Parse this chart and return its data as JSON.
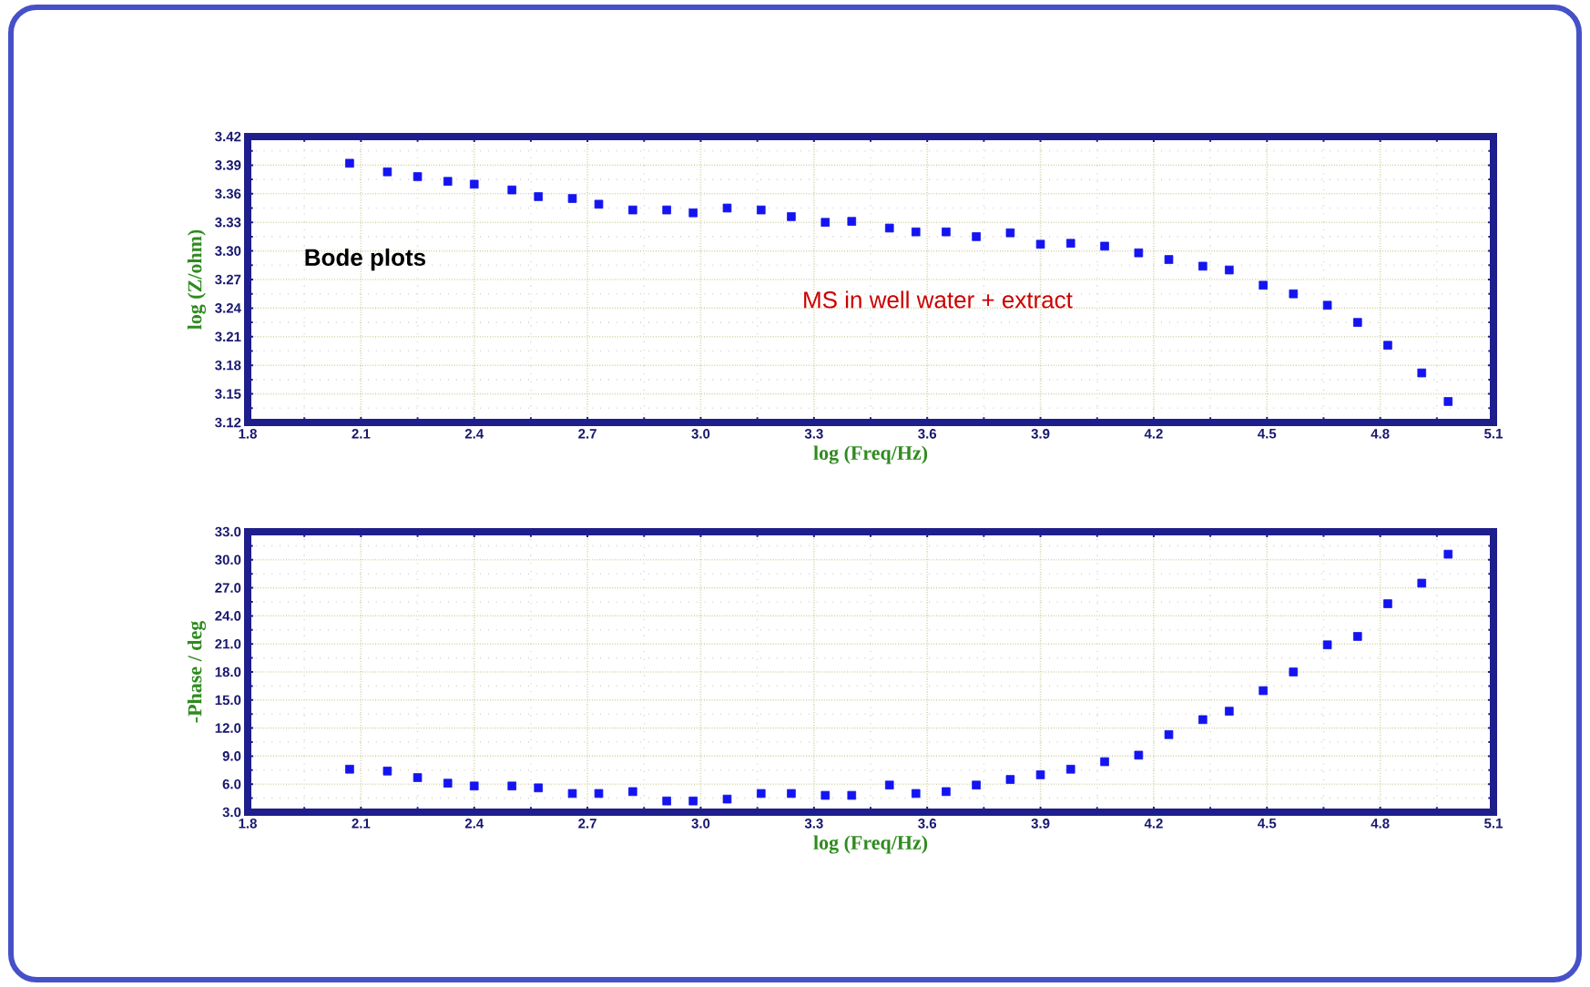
{
  "chart_data": [
    {
      "type": "scatter",
      "xlabel": "log (Freq/Hz)",
      "ylabel": "log (Z/ohm)",
      "annotations": [
        "Bode plots",
        "MS in well water + extract"
      ],
      "marker": "square",
      "grid": true,
      "xlim": [
        1.8,
        5.1
      ],
      "ylim": [
        3.12,
        3.42
      ],
      "xticks": [
        {
          "value": 1.8,
          "label": "1.8"
        },
        {
          "value": 2.1,
          "label": "2.1"
        },
        {
          "value": 2.4,
          "label": "2.4"
        },
        {
          "value": 2.7,
          "label": "2.7"
        },
        {
          "value": 3.0,
          "label": "3.0"
        },
        {
          "value": 3.3,
          "label": "3.3"
        },
        {
          "value": 3.6,
          "label": "3.6"
        },
        {
          "value": 3.9,
          "label": "3.9"
        },
        {
          "value": 4.2,
          "label": "4.2"
        },
        {
          "value": 4.5,
          "label": "4.5"
        },
        {
          "value": 4.8,
          "label": "4.8"
        },
        {
          "value": 5.1,
          "label": "5.1"
        }
      ],
      "yticks": [
        {
          "value": 3.12,
          "label": "3.12"
        },
        {
          "value": 3.15,
          "label": "3.15"
        },
        {
          "value": 3.18,
          "label": "3.18"
        },
        {
          "value": 3.21,
          "label": "3.21"
        },
        {
          "value": 3.24,
          "label": "3.24"
        },
        {
          "value": 3.27,
          "label": "3.27"
        },
        {
          "value": 3.3,
          "label": "3.30"
        },
        {
          "value": 3.33,
          "label": "3.33"
        },
        {
          "value": 3.36,
          "label": "3.36"
        },
        {
          "value": 3.39,
          "label": "3.39"
        },
        {
          "value": 3.42,
          "label": "3.42"
        }
      ],
      "x": [
        2.07,
        2.17,
        2.25,
        2.33,
        2.4,
        2.5,
        2.57,
        2.66,
        2.73,
        2.82,
        2.91,
        2.98,
        3.07,
        3.16,
        3.24,
        3.33,
        3.4,
        3.5,
        3.57,
        3.65,
        3.73,
        3.82,
        3.9,
        3.98,
        4.07,
        4.16,
        4.24,
        4.33,
        4.4,
        4.49,
        4.57,
        4.66,
        4.74,
        4.82,
        4.91,
        4.98
      ],
      "series": [
        {
          "color": "#1414f0",
          "values": [
            3.392,
            3.383,
            3.378,
            3.373,
            3.37,
            3.364,
            3.357,
            3.355,
            3.349,
            3.343,
            3.343,
            3.34,
            3.345,
            3.343,
            3.336,
            3.33,
            3.331,
            3.324,
            3.32,
            3.32,
            3.315,
            3.319,
            3.307,
            3.308,
            3.305,
            3.298,
            3.291,
            3.284,
            3.28,
            3.264,
            3.255,
            3.243,
            3.225,
            3.201,
            3.172,
            3.142
          ]
        }
      ]
    },
    {
      "type": "scatter",
      "xlabel": "log (Freq/Hz)",
      "ylabel": "-Phase / deg",
      "marker": "square",
      "grid": true,
      "xlim": [
        1.8,
        5.1
      ],
      "ylim": [
        3.0,
        33.0
      ],
      "xticks": [
        {
          "value": 1.8,
          "label": "1.8"
        },
        {
          "value": 2.1,
          "label": "2.1"
        },
        {
          "value": 2.4,
          "label": "2.4"
        },
        {
          "value": 2.7,
          "label": "2.7"
        },
        {
          "value": 3.0,
          "label": "3.0"
        },
        {
          "value": 3.3,
          "label": "3.3"
        },
        {
          "value": 3.6,
          "label": "3.6"
        },
        {
          "value": 3.9,
          "label": "3.9"
        },
        {
          "value": 4.2,
          "label": "4.2"
        },
        {
          "value": 4.5,
          "label": "4.5"
        },
        {
          "value": 4.8,
          "label": "4.8"
        },
        {
          "value": 5.1,
          "label": "5.1"
        }
      ],
      "yticks": [
        {
          "value": 3,
          "label": "3.0"
        },
        {
          "value": 6,
          "label": "6.0"
        },
        {
          "value": 9,
          "label": "9.0"
        },
        {
          "value": 12,
          "label": "12.0"
        },
        {
          "value": 15,
          "label": "15.0"
        },
        {
          "value": 18,
          "label": "18.0"
        },
        {
          "value": 21,
          "label": "21.0"
        },
        {
          "value": 24,
          "label": "24.0"
        },
        {
          "value": 27,
          "label": "27.0"
        },
        {
          "value": 30,
          "label": "30.0"
        },
        {
          "value": 33,
          "label": "33.0"
        }
      ],
      "x": [
        2.07,
        2.17,
        2.25,
        2.33,
        2.4,
        2.5,
        2.57,
        2.66,
        2.73,
        2.82,
        2.91,
        2.98,
        3.07,
        3.16,
        3.24,
        3.33,
        3.4,
        3.5,
        3.57,
        3.65,
        3.73,
        3.82,
        3.9,
        3.98,
        4.07,
        4.16,
        4.24,
        4.33,
        4.4,
        4.49,
        4.57,
        4.66,
        4.74,
        4.82,
        4.91,
        4.98
      ],
      "series": [
        {
          "color": "#1414f0",
          "values": [
            7.6,
            7.4,
            6.7,
            6.1,
            5.8,
            5.8,
            5.6,
            5.0,
            5.0,
            5.2,
            4.2,
            4.2,
            4.4,
            5.0,
            5.0,
            4.8,
            4.8,
            5.9,
            5.0,
            5.2,
            5.9,
            6.5,
            7.0,
            7.6,
            8.4,
            9.1,
            11.3,
            12.9,
            13.8,
            16.0,
            18.0,
            20.9,
            21.8,
            25.3,
            27.5,
            30.6
          ]
        }
      ]
    }
  ]
}
